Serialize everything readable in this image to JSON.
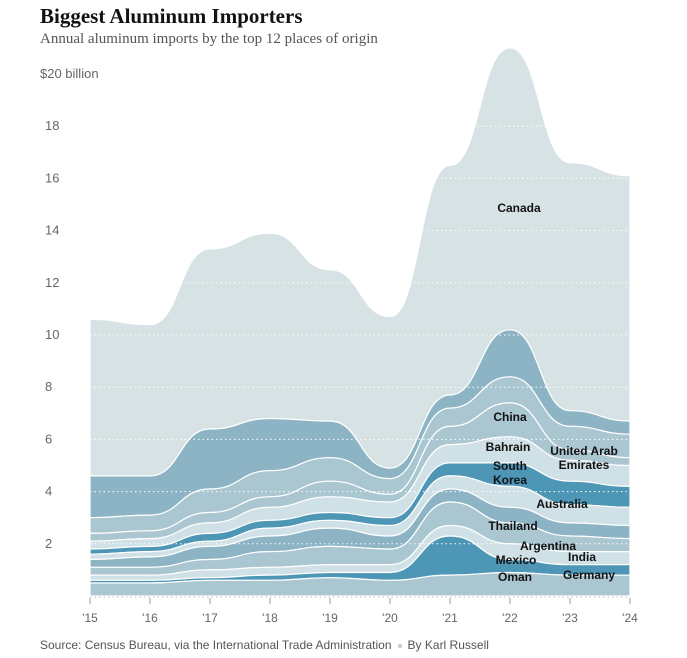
{
  "header": {
    "title": "Biggest Aluminum Importers",
    "subtitle": "Annual aluminum imports by the top 12 places of origin"
  },
  "footer": {
    "source": "Source: Census Bureau, via the International Trade Administration",
    "byline": "By Karl Russell"
  },
  "colors": {
    "canada": "#d6e2e4",
    "light": "#cfe0e6",
    "mid": "#a9c6d1",
    "dark": "#8cb4c5",
    "deep": "#4e96b6",
    "gridline": "#ffffff"
  },
  "chart_data": {
    "type": "area",
    "title": "Biggest Aluminum Importers",
    "subtitle": "Annual aluminum imports by the top 12 places of origin",
    "stacking": "ranked streams, largest on top",
    "grid": true,
    "x": [
      "'15",
      "'16",
      "'17",
      "'18",
      "'19",
      "'20",
      "'21",
      "'22",
      "'23",
      "'24"
    ],
    "yticks": [
      "$20 billion",
      "18",
      "16",
      "14",
      "12",
      "10",
      "8",
      "6",
      "4",
      "2"
    ],
    "ylim": [
      0,
      20
    ],
    "unit": "billion dollars",
    "series": [
      {
        "name": "Canada",
        "values": [
          6.0,
          5.8,
          6.9,
          7.1,
          5.8,
          5.8,
          8.8,
          10.8,
          9.5,
          9.4
        ]
      },
      {
        "name": "China",
        "values": [
          1.6,
          1.5,
          2.3,
          2.0,
          1.4,
          0.4,
          0.5,
          1.8,
          0.6,
          0.5
        ]
      },
      {
        "name": "United Arab Emirates",
        "values": [
          0.6,
          0.6,
          0.9,
          1.0,
          0.9,
          0.6,
          0.7,
          1.0,
          0.9,
          0.9
        ]
      },
      {
        "name": "Bahrain",
        "values": [
          0.3,
          0.3,
          0.4,
          0.4,
          0.6,
          0.3,
          0.7,
          1.3,
          0.4,
          0.3
        ]
      },
      {
        "name": "South Korea",
        "values": [
          0.3,
          0.3,
          0.4,
          0.5,
          0.6,
          0.6,
          0.7,
          1.0,
          0.8,
          0.8
        ]
      },
      {
        "name": "Australia",
        "values": [
          0.2,
          0.2,
          0.3,
          0.3,
          0.3,
          0.3,
          0.5,
          0.9,
          0.9,
          0.8
        ]
      },
      {
        "name": "Thailand",
        "values": [
          0.2,
          0.2,
          0.2,
          0.3,
          0.3,
          0.4,
          0.5,
          0.8,
          0.7,
          0.7
        ]
      },
      {
        "name": "Argentina",
        "values": [
          0.3,
          0.4,
          0.5,
          0.6,
          0.7,
          0.5,
          0.5,
          0.6,
          0.5,
          0.5
        ]
      },
      {
        "name": "India",
        "values": [
          0.3,
          0.3,
          0.4,
          0.6,
          0.7,
          0.6,
          0.9,
          0.8,
          0.6,
          0.5
        ]
      },
      {
        "name": "Mexico",
        "values": [
          0.2,
          0.2,
          0.3,
          0.3,
          0.3,
          0.3,
          0.4,
          0.6,
          0.5,
          0.5
        ]
      },
      {
        "name": "Oman",
        "values": [
          0.1,
          0.1,
          0.1,
          0.2,
          0.2,
          0.3,
          1.5,
          0.5,
          0.4,
          0.4
        ]
      },
      {
        "name": "Germany",
        "values": [
          0.5,
          0.5,
          0.6,
          0.6,
          0.7,
          0.6,
          0.8,
          0.9,
          0.8,
          0.8
        ]
      }
    ],
    "annotations": [
      {
        "text": "Canada",
        "series": "Canada"
      },
      {
        "text": "China",
        "series": "China"
      },
      {
        "text": "United Arab",
        "series": "United Arab Emirates"
      },
      {
        "text": "Emirates",
        "series": "United Arab Emirates"
      },
      {
        "text": "Bahrain",
        "series": "Bahrain"
      },
      {
        "text": "South",
        "series": "South Korea"
      },
      {
        "text": "Korea",
        "series": "South Korea"
      },
      {
        "text": "Australia",
        "series": "Australia"
      },
      {
        "text": "Thailand",
        "series": "Thailand"
      },
      {
        "text": "Argentina",
        "series": "Argentina"
      },
      {
        "text": "India",
        "series": "India"
      },
      {
        "text": "Mexico",
        "series": "Mexico"
      },
      {
        "text": "Oman",
        "series": "Oman"
      },
      {
        "text": "Germany",
        "series": "Germany"
      }
    ]
  }
}
